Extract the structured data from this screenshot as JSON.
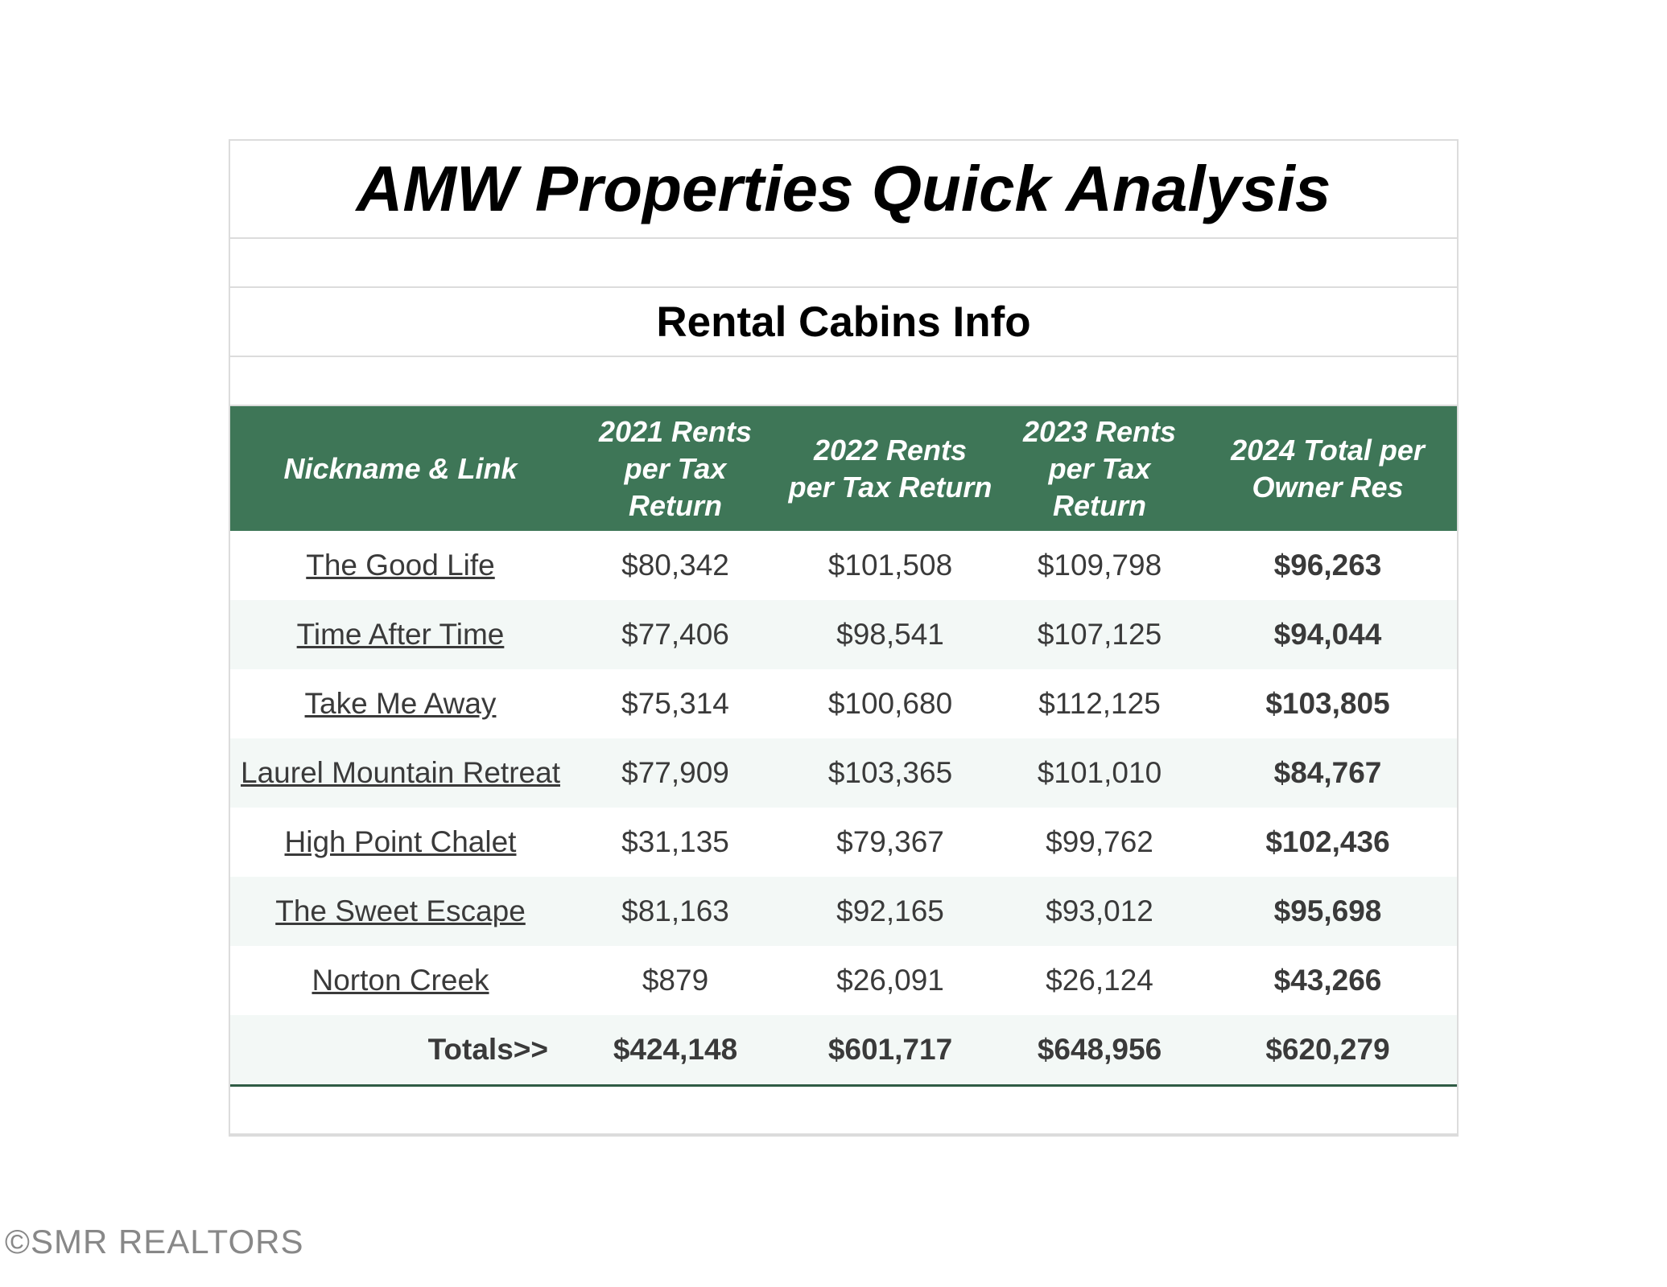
{
  "title": "AMW Properties Quick Analysis",
  "subtitle": "Rental Cabins Info",
  "table": {
    "header": [
      "Nickname & Link",
      "2021 Rents per Tax Return",
      "2022 Rents per Tax Return",
      "2023 Rents per Tax Return",
      "2024 Total per Owner Res"
    ],
    "rows": [
      [
        "The Good Life",
        "$80,342",
        "$101,508",
        "$109,798",
        "$96,263"
      ],
      [
        "Time After Time",
        "$77,406",
        "$98,541",
        "$107,125",
        "$94,044"
      ],
      [
        "Take Me Away",
        "$75,314",
        "$100,680",
        "$112,125",
        "$103,805"
      ],
      [
        "Laurel Mountain Retreat",
        "$77,909",
        "$103,365",
        "$101,010",
        "$84,767"
      ],
      [
        "High Point Chalet",
        "$31,135",
        "$79,367",
        "$99,762",
        "$102,436"
      ],
      [
        "The Sweet Escape",
        "$81,163",
        "$92,165",
        "$93,012",
        "$95,698"
      ],
      [
        "Norton Creek",
        "$879",
        "$26,091",
        "$26,124",
        "$43,266"
      ]
    ],
    "totals": [
      "Totals>>",
      "$424,148",
      "$601,717",
      "$648,956",
      "$620,279"
    ]
  },
  "watermark": "©SMR REALTORS"
}
